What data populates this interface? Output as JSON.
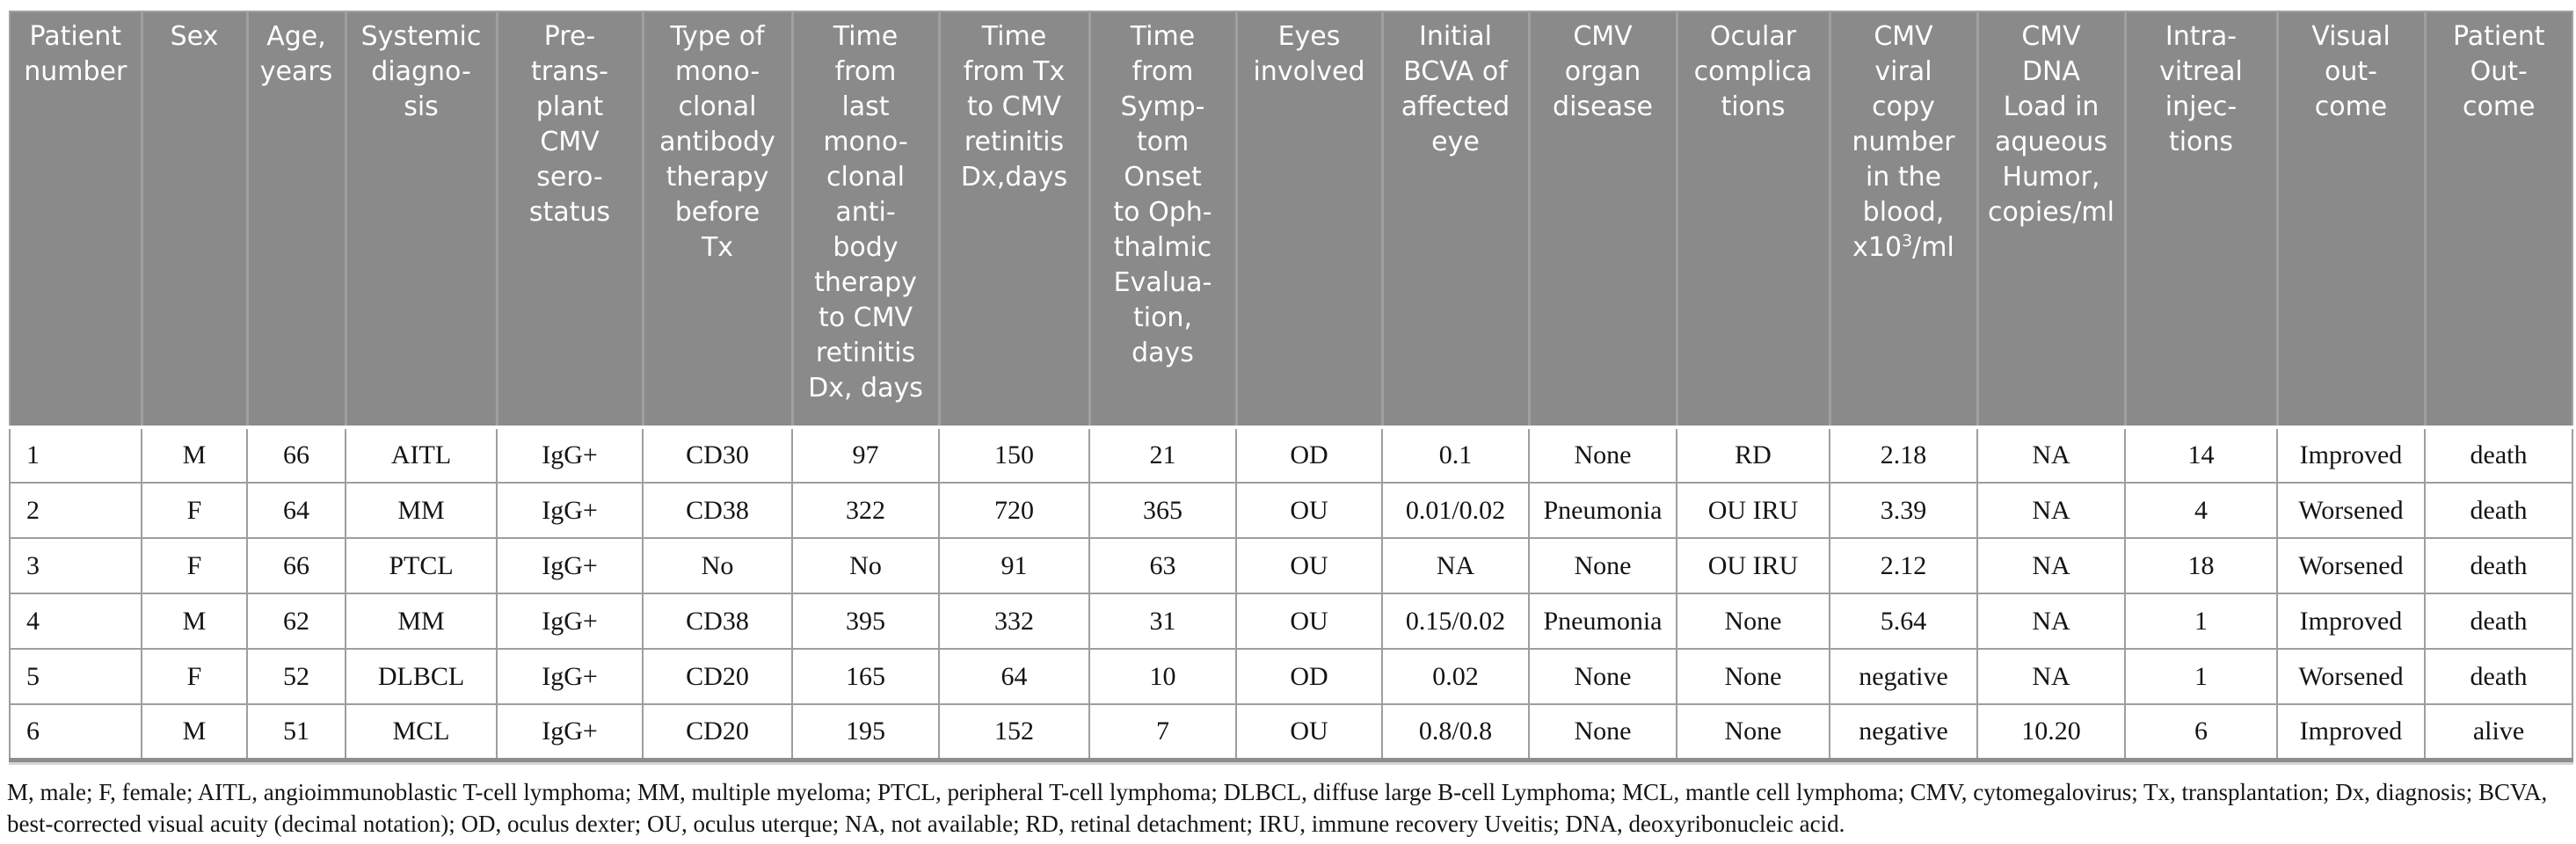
{
  "colors": {
    "header_bg": "#8a8a8a",
    "header_text": "#ffffff",
    "cell_border": "#9e9e9e",
    "body_text": "#141414"
  },
  "table": {
    "columns": [
      {
        "label": "Patient\nnumber"
      },
      {
        "label": "Sex"
      },
      {
        "label": "Age,\nyears"
      },
      {
        "label": "Systemic\ndiagno-\nsis"
      },
      {
        "label": "Pre-\ntrans-\nplant\nCMV\nsero-\nstatus"
      },
      {
        "label": "Type of\nmono-\nclonal\nantibody\ntherapy\nbefore\nTx"
      },
      {
        "label": "Time\nfrom\nlast\nmono-\nclonal\nanti-\nbody\ntherapy\nto CMV\nretinitis\nDx, days"
      },
      {
        "label": "Time\nfrom Tx\nto CMV\nretinitis\nDx,days"
      },
      {
        "label": "Time\nfrom\nSymp-\ntom\nOnset\nto Oph-\nthalmic\nEvalua-\ntion,\ndays"
      },
      {
        "label": "Eyes\ninvolved"
      },
      {
        "label": "Initial\nBCVA of\naffected\neye"
      },
      {
        "label": "CMV\norgan\ndisease"
      },
      {
        "label": "Ocular\ncomplica\ntions"
      },
      {
        "label_pre": "CMV\nviral\ncopy\nnumber\nin the\nblood,\nx10",
        "label_sup": "3",
        "label_post": "/ml"
      },
      {
        "label": "CMV\nDNA\nLoad in\naqueous\nHumor,\ncopies/ml"
      },
      {
        "label": "Intra-\nvitreal\ninjec-\ntions"
      },
      {
        "label": "Visual\nout-\ncome"
      },
      {
        "label": "Patient\nOut-\ncome"
      }
    ],
    "rows": [
      [
        "1",
        "M",
        "66",
        "AITL",
        "IgG+",
        "CD30",
        "97",
        "150",
        "21",
        "OD",
        "0.1",
        "None",
        "RD",
        "2.18",
        "NA",
        "14",
        "Improved",
        "death"
      ],
      [
        "2",
        "F",
        "64",
        "MM",
        "IgG+",
        "CD38",
        "322",
        "720",
        "365",
        "OU",
        "0.01/0.02",
        "Pneumonia",
        "OU IRU",
        "3.39",
        "NA",
        "4",
        "Worsened",
        "death"
      ],
      [
        "3",
        "F",
        "66",
        "PTCL",
        "IgG+",
        "No",
        "No",
        "91",
        "63",
        "OU",
        "NA",
        "None",
        "OU IRU",
        "2.12",
        "NA",
        "18",
        "Worsened",
        "death"
      ],
      [
        "4",
        "M",
        "62",
        "MM",
        "IgG+",
        "CD38",
        "395",
        "332",
        "31",
        "OU",
        "0.15/0.02",
        "Pneumonia",
        "None",
        "5.64",
        "NA",
        "1",
        "Improved",
        "death"
      ],
      [
        "5",
        "F",
        "52",
        "DLBCL",
        "IgG+",
        "CD20",
        "165",
        "64",
        "10",
        "OD",
        "0.02",
        "None",
        "None",
        "negative",
        "NA",
        "1",
        "Worsened",
        "death"
      ],
      [
        "6",
        "M",
        "51",
        "MCL",
        "IgG+",
        "CD20",
        "195",
        "152",
        "7",
        "OU",
        "0.8/0.8",
        "None",
        "None",
        "negative",
        "10.20",
        "6",
        "Improved",
        "alive"
      ]
    ]
  },
  "footnote_lines": [
    "M, male; F, female; AITL, angioimmunoblastic T-cell lymphoma; MM, multiple myeloma; PTCL, peripheral T-cell lymphoma; DLBCL, diffuse large B-cell Lymphoma; MCL, mantle cell lymphoma; CMV, cytomegalovirus; Tx, transplantation; Dx, diagnosis; BCVA,",
    "best-corrected visual acuity (decimal notation); OD, oculus dexter; OU, oculus uterque; NA, not available; RD, retinal detachment; IRU, immune recovery Uveitis; DNA, deoxyribonucleic acid."
  ]
}
